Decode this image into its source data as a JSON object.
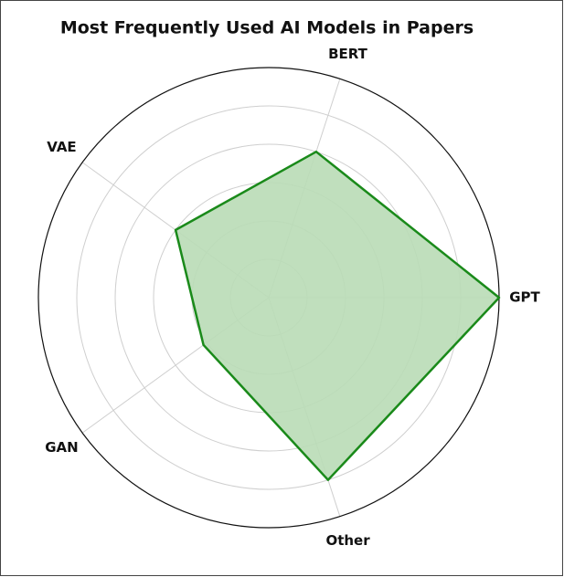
{
  "chart_data": {
    "type": "radar",
    "title": "Most Frequently Used AI Models in Papers",
    "categories": [
      "GPT",
      "BERT",
      "VAE",
      "GAN",
      "Other"
    ],
    "values": [
      60,
      40,
      30,
      21,
      50
    ],
    "color": "#1a8a1a",
    "fill": "#b9dcb6",
    "ylim": [
      0,
      60
    ],
    "yticks": [
      10,
      20,
      30,
      40,
      50
    ],
    "grid": true
  }
}
